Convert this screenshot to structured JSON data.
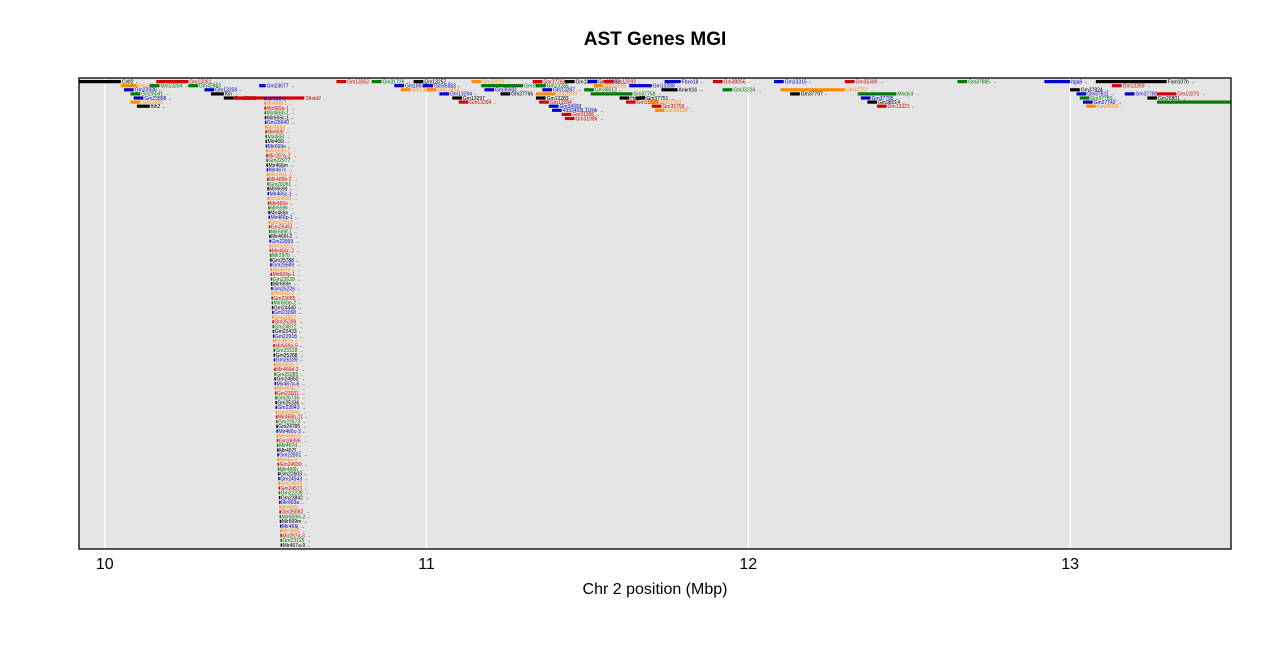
{
  "chart_data": {
    "type": "gene-track",
    "title": "AST Genes MGI",
    "xlabel": "Chr 2 position (Mbp)",
    "xlim": [
      9.92,
      13.5
    ],
    "xticks": [
      10,
      11,
      12,
      13
    ],
    "grid": true,
    "colors": {
      "panel": "#e5e5e5",
      "grid": "#ffffff",
      "protein_coding": "#000000",
      "lncRNA": "#d40000",
      "miRNA": "#0000cc",
      "pseudogene": "#007a00",
      "other": "#ff8c00"
    },
    "genes": [
      {
        "name": "Celf2",
        "start": 9.92,
        "end": 10.05,
        "strand": "-",
        "row": 0,
        "color": "#000000"
      },
      {
        "name": "Gm13261",
        "start": 10.16,
        "end": 10.26,
        "strand": "+",
        "row": 0,
        "color": "#d40000"
      },
      {
        "name": "Gm35040",
        "start": 10.05,
        "end": 10.1,
        "strand": "-",
        "row": 1,
        "color": "#ff8c00"
      },
      {
        "name": "Gm13264",
        "start": 10.14,
        "end": 10.17,
        "strand": "+",
        "row": 1,
        "color": "#007a00"
      },
      {
        "name": "Gm23936",
        "start": 10.06,
        "end": 10.09,
        "strand": "-",
        "row": 2,
        "color": "#0000cc"
      },
      {
        "name": "Gm26041",
        "start": 10.08,
        "end": 10.11,
        "strand": "+",
        "row": 3,
        "color": "#007a00"
      },
      {
        "name": "Gm23808",
        "start": 10.09,
        "end": 10.12,
        "strand": "-",
        "row": 4,
        "color": "#0000cc"
      },
      {
        "name": "Gm33456",
        "start": 10.08,
        "end": 10.11,
        "strand": "+",
        "row": 5,
        "color": "#ff8c00"
      },
      {
        "name": "Itih2",
        "start": 10.1,
        "end": 10.14,
        "strand": "-",
        "row": 6,
        "color": "#000000"
      },
      {
        "name": "Gm42883",
        "start": 10.26,
        "end": 10.29,
        "strand": "+",
        "row": 1,
        "color": "#007a00"
      },
      {
        "name": "Gm13258",
        "start": 10.31,
        "end": 10.34,
        "strand": "-",
        "row": 2,
        "color": "#0000cc"
      },
      {
        "name": "Kin",
        "start": 10.33,
        "end": 10.37,
        "strand": "+",
        "row": 3,
        "color": "#000000"
      },
      {
        "name": "Gm13261",
        "start": 10.37,
        "end": 10.4,
        "strand": "-",
        "row": 4,
        "color": "#000000"
      },
      {
        "name": "Sfmbt2",
        "start": 10.4,
        "end": 10.62,
        "strand": "-",
        "row": 4,
        "color": "#d40000"
      },
      {
        "name": "Gm23677",
        "start": 10.48,
        "end": 10.5,
        "strand": "+",
        "row": 1,
        "color": "#0000cc"
      },
      {
        "name": "Gm13352",
        "start": 10.72,
        "end": 10.75,
        "strand": "-",
        "row": 0,
        "color": "#d40000"
      },
      {
        "name": "Gm31726",
        "start": 10.83,
        "end": 10.86,
        "strand": "+",
        "row": 0,
        "color": "#007a00"
      },
      {
        "name": "Gm18547",
        "start": 10.9,
        "end": 10.93,
        "strand": "-",
        "row": 1,
        "color": "#0000cc"
      },
      {
        "name": "Gm13265",
        "start": 10.92,
        "end": 10.95,
        "strand": "+",
        "row": 2,
        "color": "#ff8c00"
      },
      {
        "name": "Gm13257",
        "start": 10.96,
        "end": 10.99,
        "strand": "-",
        "row": 0,
        "color": "#000000"
      },
      {
        "name": "Gm35583",
        "start": 10.99,
        "end": 11.02,
        "strand": "-",
        "row": 1,
        "color": "#0000cc"
      },
      {
        "name": "Gm13263",
        "start": 11.0,
        "end": 11.03,
        "strand": "+",
        "row": 2,
        "color": "#ff8c00"
      },
      {
        "name": "Gm13294",
        "start": 11.04,
        "end": 11.07,
        "strand": "-",
        "row": 3,
        "color": "#0000cc"
      },
      {
        "name": "Gm13297",
        "start": 11.08,
        "end": 11.11,
        "strand": "+",
        "row": 4,
        "color": "#000000"
      },
      {
        "name": "Gm13294",
        "start": 11.1,
        "end": 11.13,
        "strand": "-",
        "row": 5,
        "color": "#d40000"
      },
      {
        "name": "Gm33029",
        "start": 11.14,
        "end": 11.17,
        "strand": "+",
        "row": 0,
        "color": "#ff8c00"
      },
      {
        "name": "Gm35930",
        "start": 11.17,
        "end": 11.3,
        "strand": "-",
        "row": 1,
        "color": "#007a00"
      },
      {
        "name": "Gm35931",
        "start": 11.18,
        "end": 11.21,
        "strand": "+",
        "row": 2,
        "color": "#0000cc"
      },
      {
        "name": "Gm37766",
        "start": 11.23,
        "end": 11.26,
        "strand": "-",
        "row": 3,
        "color": "#000000"
      },
      {
        "name": "Gm37769",
        "start": 11.33,
        "end": 11.36,
        "strand": "+",
        "row": 0,
        "color": "#d40000"
      },
      {
        "name": "Gm13286",
        "start": 11.34,
        "end": 11.37,
        "strand": "-",
        "row": 1,
        "color": "#007a00"
      },
      {
        "name": "Gm13287",
        "start": 11.36,
        "end": 11.39,
        "strand": "+",
        "row": 2,
        "color": "#0000cc"
      },
      {
        "name": "Gm20967",
        "start": 11.34,
        "end": 11.4,
        "strand": "-",
        "row": 3,
        "color": "#ff8c00"
      },
      {
        "name": "Gm13283",
        "start": 11.34,
        "end": 11.37,
        "strand": "+",
        "row": 4,
        "color": "#000000"
      },
      {
        "name": "Gm13284",
        "start": 11.35,
        "end": 11.38,
        "strand": "-",
        "row": 5,
        "color": "#d40000"
      },
      {
        "name": "Gm34993",
        "start": 11.38,
        "end": 11.41,
        "strand": "+",
        "row": 6,
        "color": "#0000cc"
      },
      {
        "name": "4933403L11Rik",
        "start": 11.39,
        "end": 11.42,
        "strand": "+",
        "row": 7,
        "color": "#0000cc"
      },
      {
        "name": "Gm31990",
        "start": 11.42,
        "end": 11.45,
        "strand": "-",
        "row": 8,
        "color": "#d40000"
      },
      {
        "name": "Gm31986",
        "start": 11.43,
        "end": 11.46,
        "strand": "+",
        "row": 9,
        "color": "#d40000"
      },
      {
        "name": "Gm13290",
        "start": 11.43,
        "end": 11.46,
        "strand": "-",
        "row": 0,
        "color": "#000000"
      },
      {
        "name": "Gm15883",
        "start": 11.5,
        "end": 11.53,
        "strand": "+",
        "row": 0,
        "color": "#0000cc"
      },
      {
        "name": "Gm13292",
        "start": 11.55,
        "end": 11.58,
        "strand": "-",
        "row": 0,
        "color": "#d40000"
      },
      {
        "name": "Gm13293",
        "start": 11.52,
        "end": 11.55,
        "strand": "+",
        "row": 1,
        "color": "#ff8c00"
      },
      {
        "name": "Gm36013",
        "start": 11.49,
        "end": 11.52,
        "strand": "-",
        "row": 2,
        "color": "#007a00"
      },
      {
        "name": "Gm37758",
        "start": 11.51,
        "end": 11.64,
        "strand": "+",
        "row": 3,
        "color": "#007a00"
      },
      {
        "name": "Hsp37",
        "start": 11.6,
        "end": 11.63,
        "strand": "-",
        "row": 4,
        "color": "#000000"
      },
      {
        "name": "Gm13285",
        "start": 11.62,
        "end": 11.65,
        "strand": "-",
        "row": 5,
        "color": "#d40000"
      },
      {
        "name": "Gm37751",
        "start": 11.65,
        "end": 11.68,
        "strand": "+",
        "row": 4,
        "color": "#000000"
      },
      {
        "name": "Gm13288",
        "start": 11.63,
        "end": 11.7,
        "strand": "-",
        "row": 1,
        "color": "#0000cc"
      },
      {
        "name": "Gm37763",
        "start": 11.69,
        "end": 11.72,
        "strand": "+",
        "row": 5,
        "color": "#ff8c00"
      },
      {
        "name": "Gm35759",
        "start": 11.7,
        "end": 11.73,
        "strand": "-",
        "row": 6,
        "color": "#d40000"
      },
      {
        "name": "Ankrd16",
        "start": 11.73,
        "end": 11.78,
        "strand": "+",
        "row": 2,
        "color": "#000000"
      },
      {
        "name": "Fbxo18",
        "start": 11.74,
        "end": 11.79,
        "strand": "-",
        "row": 0,
        "color": "#0000cc"
      },
      {
        "name": "Gm38198",
        "start": 11.71,
        "end": 11.74,
        "strand": "+",
        "row": 7,
        "color": "#ff8c00"
      },
      {
        "name": "Gm38056",
        "start": 11.89,
        "end": 11.92,
        "strand": "-",
        "row": 0,
        "color": "#d40000"
      },
      {
        "name": "Gm33234",
        "start": 11.92,
        "end": 11.95,
        "strand": "+",
        "row": 2,
        "color": "#007a00"
      },
      {
        "name": "Gm13315",
        "start": 12.08,
        "end": 12.11,
        "strand": "-",
        "row": 0,
        "color": "#0000cc"
      },
      {
        "name": "Gm37757",
        "start": 12.1,
        "end": 12.3,
        "strand": "+",
        "row": 2,
        "color": "#ff8c00"
      },
      {
        "name": "Gm37797",
        "start": 12.13,
        "end": 12.16,
        "strand": "-",
        "row": 3,
        "color": "#000000"
      },
      {
        "name": "Gm35300",
        "start": 12.3,
        "end": 12.33,
        "strand": "+",
        "row": 0,
        "color": "#d40000"
      },
      {
        "name": "Mindy3",
        "start": 12.34,
        "end": 12.46,
        "strand": "+",
        "row": 3,
        "color": "#007a00"
      },
      {
        "name": "Gm37795",
        "start": 12.35,
        "end": 12.38,
        "strand": "-",
        "row": 4,
        "color": "#0000cc"
      },
      {
        "name": "Gm38014",
        "start": 12.37,
        "end": 12.4,
        "strand": "-",
        "row": 5,
        "color": "#000000"
      },
      {
        "name": "Gm13321",
        "start": 12.4,
        "end": 12.43,
        "strand": "-",
        "row": 6,
        "color": "#d40000"
      },
      {
        "name": "Gm37885",
        "start": 12.65,
        "end": 12.68,
        "strand": "+",
        "row": 0,
        "color": "#007a00"
      },
      {
        "name": "Itga8",
        "start": 12.92,
        "end": 13.0,
        "strand": "-",
        "row": 0,
        "color": "#0000cc"
      },
      {
        "name": "Fam107b",
        "start": 13.08,
        "end": 13.3,
        "strand": "+",
        "row": 0,
        "color": "#000000"
      },
      {
        "name": "Gm37824",
        "start": 13.0,
        "end": 13.03,
        "strand": "+",
        "row": 2,
        "color": "#000000"
      },
      {
        "name": "Gm37811",
        "start": 13.02,
        "end": 13.05,
        "strand": "+",
        "row": 3,
        "color": "#0000cc"
      },
      {
        "name": "Gm37780",
        "start": 13.03,
        "end": 13.06,
        "strand": "-",
        "row": 4,
        "color": "#007a00"
      },
      {
        "name": "Gm37742",
        "start": 13.04,
        "end": 13.07,
        "strand": "+",
        "row": 5,
        "color": "#0000cc"
      },
      {
        "name": "Gm38266",
        "start": 13.05,
        "end": 13.08,
        "strand": "-",
        "row": 6,
        "color": "#ff8c00"
      },
      {
        "name": "Gm13269",
        "start": 13.13,
        "end": 13.16,
        "strand": "+",
        "row": 1,
        "color": "#d40000"
      },
      {
        "name": "Gm37780",
        "start": 13.17,
        "end": 13.2,
        "strand": "-",
        "row": 3,
        "color": "#0000cc"
      },
      {
        "name": "Gm13270",
        "start": 13.27,
        "end": 13.33,
        "strand": "+",
        "row": 3,
        "color": "#d40000"
      },
      {
        "name": "Gm26801",
        "start": 13.24,
        "end": 13.27,
        "strand": "+",
        "row": 4,
        "color": "#000000"
      },
      {
        "name": "Cdnf",
        "start": 13.27,
        "end": 13.5,
        "strand": "+",
        "row": 5,
        "color": "#007a00"
      }
    ],
    "column": {
      "start": 10.495,
      "names": [
        "Mir669-1",
        "Mir466f-1",
        "Mir669a-1",
        "Mir466b-1",
        "Mir669c-1",
        "Gm25640",
        "Mir466d",
        "Mir669l",
        "Mir466l",
        "Mir466i",
        "Mir669o",
        "Mir669a-2",
        "Mir297a-2",
        "Gm22977",
        "Mir466m",
        "Mir467c",
        "Mir669a-3",
        "Mir466b-2",
        "Gm26051",
        "Mir669d",
        "Mir466c-1",
        "Gm24381",
        "Mir466e",
        "Mir669k",
        "Mir466n",
        "Mir466p-1",
        "Gm22812",
        "Gm25451",
        "Mir669f-1",
        "Mir466f-2",
        "Gm22893",
        "Gm23021",
        "Mir466c-2",
        "Mir297b",
        "Gm25788",
        "Gm25689",
        "Mir467e-1",
        "Mir669p-1",
        "Gm22639",
        "Mir669e",
        "Gm26226",
        "Mir669i-2",
        "Gm23085",
        "Mir669p-2",
        "Gm24440",
        "Gm23268",
        "Gm22657",
        "Gm25299",
        "Gm24672",
        "Gm22433",
        "Gm22918",
        "Mir467a-7",
        "Mir669a-5",
        "Gm23128",
        "Gm25288",
        "Gm26189",
        "Mir669a-7",
        "Mir466d-2",
        "Gm25285",
        "Gm24850",
        "Mir467a-8",
        "Mir466b-7",
        "Gm23201",
        "Gm26736",
        "Gm25336",
        "Gm23843",
        "Gm22540",
        "Mir466b-11",
        "Gm22673",
        "Gm24785",
        "Mir466c-3",
        "Mir466b-5",
        "Gm26096",
        "Mir467d",
        "Mir467f",
        "Gm22851",
        "Mir467e",
        "Gm24590",
        "Mir466h",
        "Gm22603",
        "Gm24543",
        "Gm24928",
        "Gm24571",
        "Gm22238",
        "Gm23842",
        "Mir669a",
        "Mir669j",
        "Gm26082",
        "Mir669m-2",
        "Mir669m",
        "Mir466j",
        "Mir466g",
        "Mir297a-3",
        "Gm23125",
        "Mir467a-9",
        "Gm24848",
        "Mir669n"
      ]
    }
  }
}
